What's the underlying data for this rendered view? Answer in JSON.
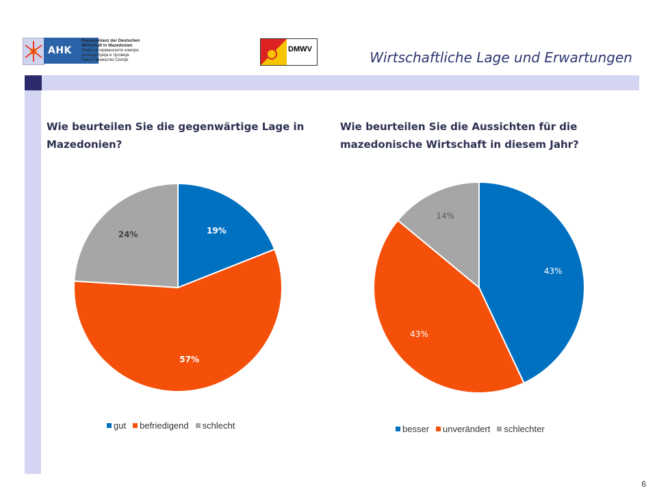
{
  "header": {
    "ahk_badge": "AHK",
    "ahk_lines": [
      "Repräsentanz der Deutschen",
      "Wirtschaft in Mazedonien",
      "Унија на германските комори",
      "за индустрија и трговија",
      "Претставништво Скопје"
    ],
    "dmwv_text": "DMWV",
    "title": "Wirtschaftliche Lage und Erwartungen"
  },
  "colors": {
    "blue": "#0070c0",
    "orange": "#f4500a",
    "gray": "#a6a6a6",
    "accent": "#2b2a6b",
    "bar": "#d4d4f3"
  },
  "chart_data": [
    {
      "type": "pie",
      "title": "Wie beurteilen Sie die gegenwärtige Lage in Mazedonien?",
      "categories": [
        "gut",
        "befriedigend",
        "schlecht"
      ],
      "values": [
        19,
        57,
        24
      ],
      "labels": [
        "19%",
        "57%",
        "24%"
      ],
      "colors": [
        "#0070c0",
        "#f4500a",
        "#a6a6a6"
      ],
      "legend": "bottom"
    },
    {
      "type": "pie",
      "title": "Wie beurteilen Sie die Aussichten für die mazedonische Wirtschaft in diesem Jahr?",
      "categories": [
        "besser",
        "unverändert",
        "schlechter"
      ],
      "values": [
        43,
        43,
        14
      ],
      "labels": [
        "43%",
        "43%",
        "14%"
      ],
      "colors": [
        "#0070c0",
        "#f4500a",
        "#a6a6a6"
      ],
      "legend": "bottom"
    }
  ],
  "page_number": "6"
}
